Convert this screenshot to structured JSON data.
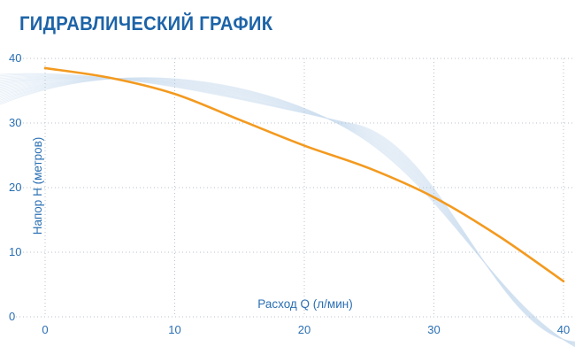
{
  "title": "ГИДРАВЛИЧЕСКИЙ ГРАФИК",
  "colors": {
    "title": "#1d64a8",
    "axis_text": "#2a6fb3",
    "grid": "#b9c2cc",
    "curve": "#f39a1f",
    "decor_waves": "#cfe0f0"
  },
  "chart_data": {
    "type": "line",
    "title": "ГИДРАВЛИЧЕСКИЙ ГРАФИК",
    "xlabel": "Расход Q (л/мин)",
    "ylabel": "Напор H (метров)",
    "xlim": [
      0,
      40
    ],
    "ylim": [
      0,
      40
    ],
    "x_ticks": [
      "0",
      "10",
      "20",
      "30",
      "40"
    ],
    "y_ticks": [
      "0",
      "10",
      "20",
      "30",
      "40"
    ],
    "grid": true,
    "series": [
      {
        "x": [
          0,
          5,
          10,
          15,
          20,
          25,
          30,
          35,
          40
        ],
        "y": [
          38.5,
          37.0,
          34.5,
          30.5,
          26.5,
          23.0,
          18.5,
          12.5,
          5.5
        ]
      }
    ]
  }
}
